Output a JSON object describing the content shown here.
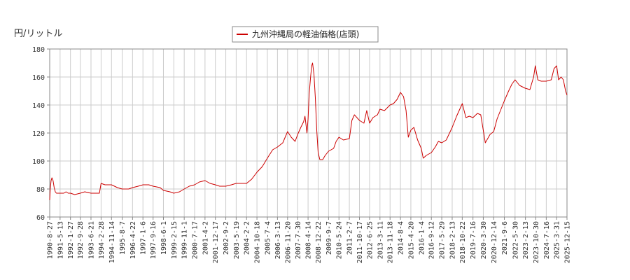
{
  "chart_data": {
    "type": "line",
    "title": "",
    "ylabel": "円/リットル",
    "xlabel": "",
    "ylim": [
      60,
      180
    ],
    "yticks": [
      60,
      80,
      100,
      120,
      140,
      160,
      180
    ],
    "grid": true,
    "legend_position": "top-center",
    "series": [
      {
        "name": "九州沖縄局の軽油価格(店頭)",
        "color": "#cc0000",
        "points": [
          [
            "1990-08-27",
            72
          ],
          [
            "1990-09-10",
            80
          ],
          [
            "1990-10-01",
            86
          ],
          [
            "1990-10-22",
            88
          ],
          [
            "1990-11-19",
            86
          ],
          [
            "1990-12-17",
            81
          ],
          [
            "1991-01-14",
            78
          ],
          [
            "1991-02-11",
            77
          ],
          [
            "1991-05-13",
            77
          ],
          [
            "1991-08-12",
            77
          ],
          [
            "1991-10-07",
            78
          ],
          [
            "1991-12-02",
            77
          ],
          [
            "1992-01-27",
            77
          ],
          [
            "1992-05-11",
            76
          ],
          [
            "1992-09-28",
            77
          ],
          [
            "1993-01-18",
            78
          ],
          [
            "1993-06-21",
            77
          ],
          [
            "1993-10-04",
            77
          ],
          [
            "1994-01-17",
            77
          ],
          [
            "1994-02-28",
            84
          ],
          [
            "1994-06-06",
            83
          ],
          [
            "1994-11-14",
            83
          ],
          [
            "1995-04-10",
            81
          ],
          [
            "1995-08-07",
            80
          ],
          [
            "1996-01-15",
            80
          ],
          [
            "1996-04-22",
            81
          ],
          [
            "1996-09-09",
            82
          ],
          [
            "1997-01-06",
            83
          ],
          [
            "1997-06-02",
            83
          ],
          [
            "1997-09-16",
            82
          ],
          [
            "1998-03-09",
            81
          ],
          [
            "1998-06-01",
            79
          ],
          [
            "1998-11-09",
            78
          ],
          [
            "1999-02-15",
            77
          ],
          [
            "1999-07-05",
            78
          ],
          [
            "1999-11-01",
            80
          ],
          [
            "2000-03-06",
            82
          ],
          [
            "2000-07-17",
            83
          ],
          [
            "2000-11-13",
            85
          ],
          [
            "2001-04-02",
            86
          ],
          [
            "2001-08-06",
            84
          ],
          [
            "2001-12-17",
            83
          ],
          [
            "2002-04-01",
            82
          ],
          [
            "2002-09-02",
            82
          ],
          [
            "2003-01-20",
            83
          ],
          [
            "2003-05-19",
            84
          ],
          [
            "2003-09-22",
            84
          ],
          [
            "2004-02-02",
            84
          ],
          [
            "2004-06-07",
            87
          ],
          [
            "2004-10-18",
            92
          ],
          [
            "2005-02-28",
            96
          ],
          [
            "2005-07-04",
            102
          ],
          [
            "2005-11-14",
            108
          ],
          [
            "2006-03-13",
            110
          ],
          [
            "2006-07-24",
            113
          ],
          [
            "2006-11-20",
            121
          ],
          [
            "2007-02-19",
            117
          ],
          [
            "2007-05-28",
            114
          ],
          [
            "2007-07-30",
            119
          ],
          [
            "2007-10-15",
            124
          ],
          [
            "2007-12-24",
            128
          ],
          [
            "2008-01-28",
            132
          ],
          [
            "2008-03-17",
            120
          ],
          [
            "2008-04-14",
            130
          ],
          [
            "2008-05-12",
            148
          ],
          [
            "2008-06-16",
            160
          ],
          [
            "2008-07-14",
            168
          ],
          [
            "2008-08-04",
            170
          ],
          [
            "2008-09-08",
            162
          ],
          [
            "2008-10-13",
            145
          ],
          [
            "2008-11-17",
            122
          ],
          [
            "2008-12-22",
            106
          ],
          [
            "2009-02-02",
            101
          ],
          [
            "2009-04-13",
            101
          ],
          [
            "2009-06-15",
            104
          ],
          [
            "2009-09-07",
            107
          ],
          [
            "2010-01-11",
            109
          ],
          [
            "2010-03-15",
            114
          ],
          [
            "2010-05-24",
            117
          ],
          [
            "2010-09-13",
            115
          ],
          [
            "2011-02-07",
            116
          ],
          [
            "2011-04-11",
            129
          ],
          [
            "2011-06-13",
            133
          ],
          [
            "2011-10-17",
            129
          ],
          [
            "2012-02-06",
            127
          ],
          [
            "2012-04-16",
            136
          ],
          [
            "2012-06-25",
            127
          ],
          [
            "2012-09-17",
            131
          ],
          [
            "2013-01-07",
            133
          ],
          [
            "2013-03-11",
            137
          ],
          [
            "2013-07-01",
            136
          ],
          [
            "2013-11-18",
            140
          ],
          [
            "2014-02-10",
            141
          ],
          [
            "2014-05-12",
            144
          ],
          [
            "2014-08-04",
            149
          ],
          [
            "2014-10-20",
            146
          ],
          [
            "2014-12-22",
            136
          ],
          [
            "2015-02-16",
            117
          ],
          [
            "2015-04-20",
            122
          ],
          [
            "2015-07-06",
            124
          ],
          [
            "2015-10-05",
            115
          ],
          [
            "2016-01-04",
            109
          ],
          [
            "2016-02-22",
            102
          ],
          [
            "2016-05-09",
            104
          ],
          [
            "2016-09-12",
            106
          ],
          [
            "2016-12-19",
            110
          ],
          [
            "2017-03-06",
            114
          ],
          [
            "2017-05-29",
            113
          ],
          [
            "2017-09-18",
            115
          ],
          [
            "2018-02-13",
            124
          ],
          [
            "2018-06-04",
            132
          ],
          [
            "2018-10-22",
            141
          ],
          [
            "2019-01-21",
            131
          ],
          [
            "2019-04-15",
            132
          ],
          [
            "2019-07-16",
            131
          ],
          [
            "2019-11-04",
            134
          ],
          [
            "2020-01-27",
            133
          ],
          [
            "2020-03-30",
            122
          ],
          [
            "2020-05-18",
            113
          ],
          [
            "2020-09-14",
            119
          ],
          [
            "2020-12-14",
            121
          ],
          [
            "2021-03-08",
            130
          ],
          [
            "2021-09-06",
            143
          ],
          [
            "2021-12-20",
            150
          ],
          [
            "2022-03-14",
            155
          ],
          [
            "2022-05-30",
            158
          ],
          [
            "2022-09-19",
            154
          ],
          [
            "2023-02-06",
            152
          ],
          [
            "2023-06-05",
            151
          ],
          [
            "2023-09-04",
            160
          ],
          [
            "2023-10-16",
            168
          ],
          [
            "2023-12-18",
            158
          ],
          [
            "2024-03-11",
            157
          ],
          [
            "2024-07-16",
            157
          ],
          [
            "2024-11-18",
            158
          ],
          [
            "2025-01-27",
            166
          ],
          [
            "2025-03-31",
            168
          ],
          [
            "2025-05-19",
            158
          ],
          [
            "2025-07-21",
            160
          ],
          [
            "2025-09-15",
            158
          ],
          [
            "2025-11-10",
            150
          ],
          [
            "2025-12-15",
            147
          ]
        ]
      }
    ],
    "x_tick_labels": [
      "1990-8-27",
      "1991-5-13",
      "1992-1-27",
      "1992-9-28",
      "1993-6-21",
      "1994-2-28",
      "1994-11-14",
      "1995-8-7",
      "1996-4-22",
      "1997-1-6",
      "1997-9-16",
      "1998-6-1",
      "1999-2-15",
      "1999-11-1",
      "2000-7-17",
      "2001-4-2",
      "2001-12-17",
      "2002-9-2",
      "2003-5-19",
      "2004-2-2",
      "2004-10-18",
      "2005-7-4",
      "2006-3-13",
      "2006-11-20",
      "2007-7-30",
      "2008-4-14",
      "2008-12-22",
      "2009-9-7",
      "2010-5-24",
      "2011-2-7",
      "2011-10-17",
      "2012-6-25",
      "2013-3-11",
      "2013-11-18",
      "2014-8-4",
      "2015-4-20",
      "2016-1-4",
      "2016-9-12",
      "2017-5-29",
      "2018-2-13",
      "2018-10-22",
      "2019-7-16",
      "2020-3-30",
      "2020-12-14",
      "2021-9-6",
      "2022-5-30",
      "2023-2-13",
      "2023-10-30",
      "2024-7-16",
      "2025-3-31",
      "2025-12-15"
    ]
  }
}
